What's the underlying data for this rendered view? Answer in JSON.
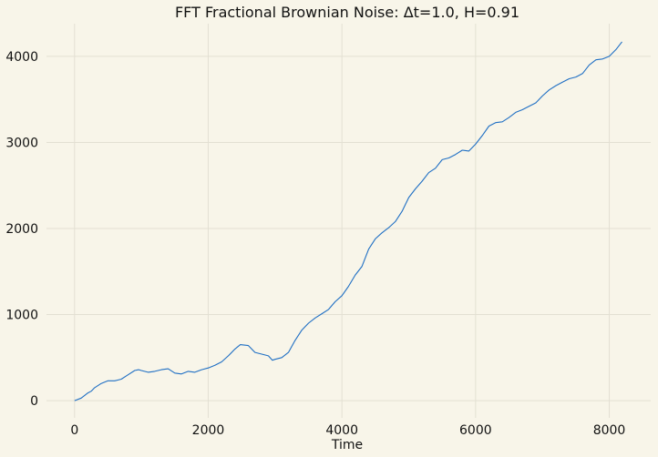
{
  "chart_data": {
    "type": "line",
    "title": "FFT Fractional Brownian Noise: Δt=1.0, H=0.91",
    "xlabel": "Time",
    "ylabel": "",
    "xlim": [
      -420,
      8620
    ],
    "ylim": [
      -200,
      4380
    ],
    "xticks": [
      0,
      2000,
      4000,
      6000,
      8000
    ],
    "yticks": [
      0,
      1000,
      2000,
      3000,
      4000
    ],
    "grid": true,
    "colors": {
      "background": "#f8f5e9",
      "grid": "#e3e0d3",
      "line": "#1f6fc4"
    },
    "series": [
      {
        "name": "",
        "x": [
          0,
          100,
          200,
          250,
          300,
          400,
          500,
          560,
          600,
          700,
          800,
          900,
          960,
          1000,
          1100,
          1200,
          1300,
          1400,
          1500,
          1600,
          1700,
          1800,
          1900,
          2000,
          2100,
          2200,
          2300,
          2400,
          2480,
          2600,
          2700,
          2800,
          2900,
          2960,
          3000,
          3100,
          3200,
          3300,
          3400,
          3500,
          3600,
          3700,
          3800,
          3900,
          4000,
          4100,
          4200,
          4300,
          4400,
          4500,
          4600,
          4700,
          4800,
          4900,
          5000,
          5100,
          5200,
          5300,
          5400,
          5500,
          5600,
          5700,
          5800,
          5900,
          6000,
          6100,
          6200,
          6300,
          6400,
          6500,
          6600,
          6700,
          6800,
          6900,
          7000,
          7100,
          7200,
          7300,
          7400,
          7500,
          7600,
          7700,
          7800,
          7900,
          8000,
          8100,
          8190
        ],
        "y": [
          0,
          30,
          90,
          110,
          150,
          200,
          230,
          230,
          230,
          250,
          300,
          350,
          360,
          350,
          330,
          340,
          360,
          370,
          320,
          310,
          340,
          330,
          360,
          380,
          410,
          450,
          520,
          600,
          650,
          640,
          560,
          540,
          520,
          470,
          480,
          500,
          560,
          700,
          820,
          900,
          960,
          1010,
          1060,
          1150,
          1220,
          1330,
          1460,
          1560,
          1760,
          1880,
          1950,
          2010,
          2080,
          2200,
          2360,
          2460,
          2550,
          2650,
          2700,
          2800,
          2820,
          2860,
          2910,
          2900,
          2980,
          3080,
          3190,
          3230,
          3240,
          3290,
          3350,
          3380,
          3420,
          3460,
          3540,
          3610,
          3660,
          3700,
          3740,
          3760,
          3800,
          3900,
          3960,
          3970,
          4000,
          4080,
          4170
        ]
      }
    ]
  }
}
